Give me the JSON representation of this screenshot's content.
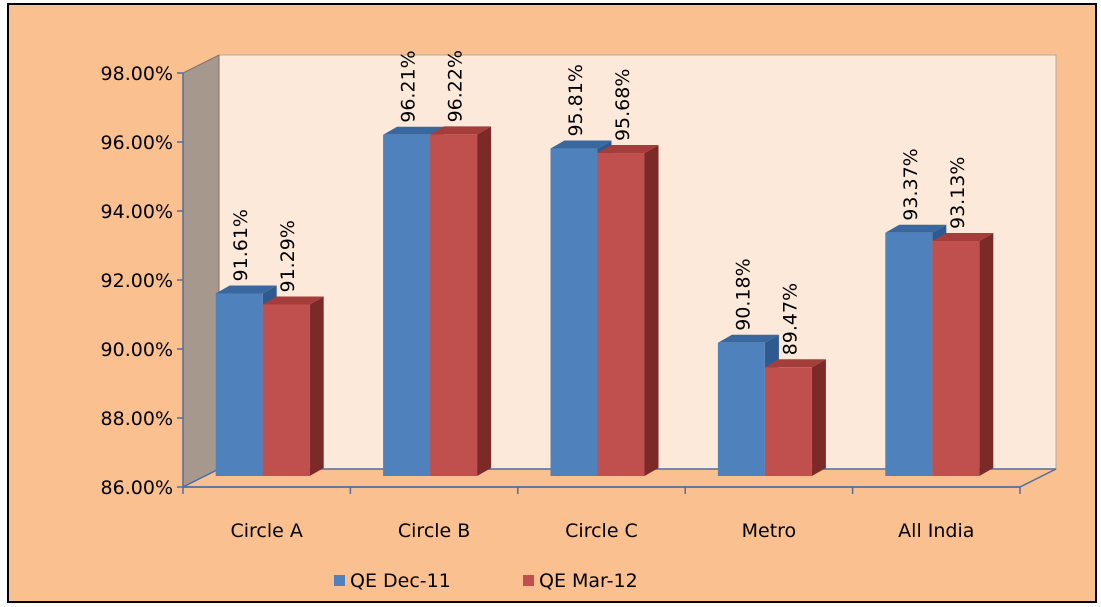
{
  "chart_data": {
    "type": "bar",
    "title": "",
    "xlabel": "",
    "ylabel": "",
    "categories": [
      "Circle A",
      "Circle B",
      "Circle C",
      "Metro",
      "All India"
    ],
    "series": [
      {
        "name": "QE Dec-11",
        "values": [
          91.61,
          96.21,
          95.81,
          90.18,
          93.37
        ],
        "labels": [
          "91.61%",
          "96.21%",
          "95.81%",
          "90.18%",
          "93.37%"
        ]
      },
      {
        "name": "QE Mar-12",
        "values": [
          91.29,
          96.22,
          95.68,
          89.47,
          93.13
        ],
        "labels": [
          "91.29%",
          "96.22%",
          "95.68%",
          "89.47%",
          "93.13%"
        ]
      }
    ],
    "ylim": [
      86,
      98
    ],
    "yticks": [
      86,
      88,
      90,
      92,
      94,
      96,
      98
    ],
    "ytick_labels": [
      "86.00%",
      "88.00%",
      "90.00%",
      "92.00%",
      "94.00%",
      "96.00%",
      "98.00%"
    ],
    "grid": false,
    "legend_position": "bottom",
    "style": "3d-clustered-column"
  },
  "colors": {
    "background": "#fac090",
    "plot_wall": "#fde9d9",
    "side_wall": "#a6988d",
    "floor": "#fac090",
    "series": [
      "#4f81bd",
      "#c0504d"
    ],
    "series_side": [
      "#2e5a8f",
      "#7b2a28"
    ],
    "series_top": [
      "#3a679e",
      "#a33e3b"
    ]
  }
}
